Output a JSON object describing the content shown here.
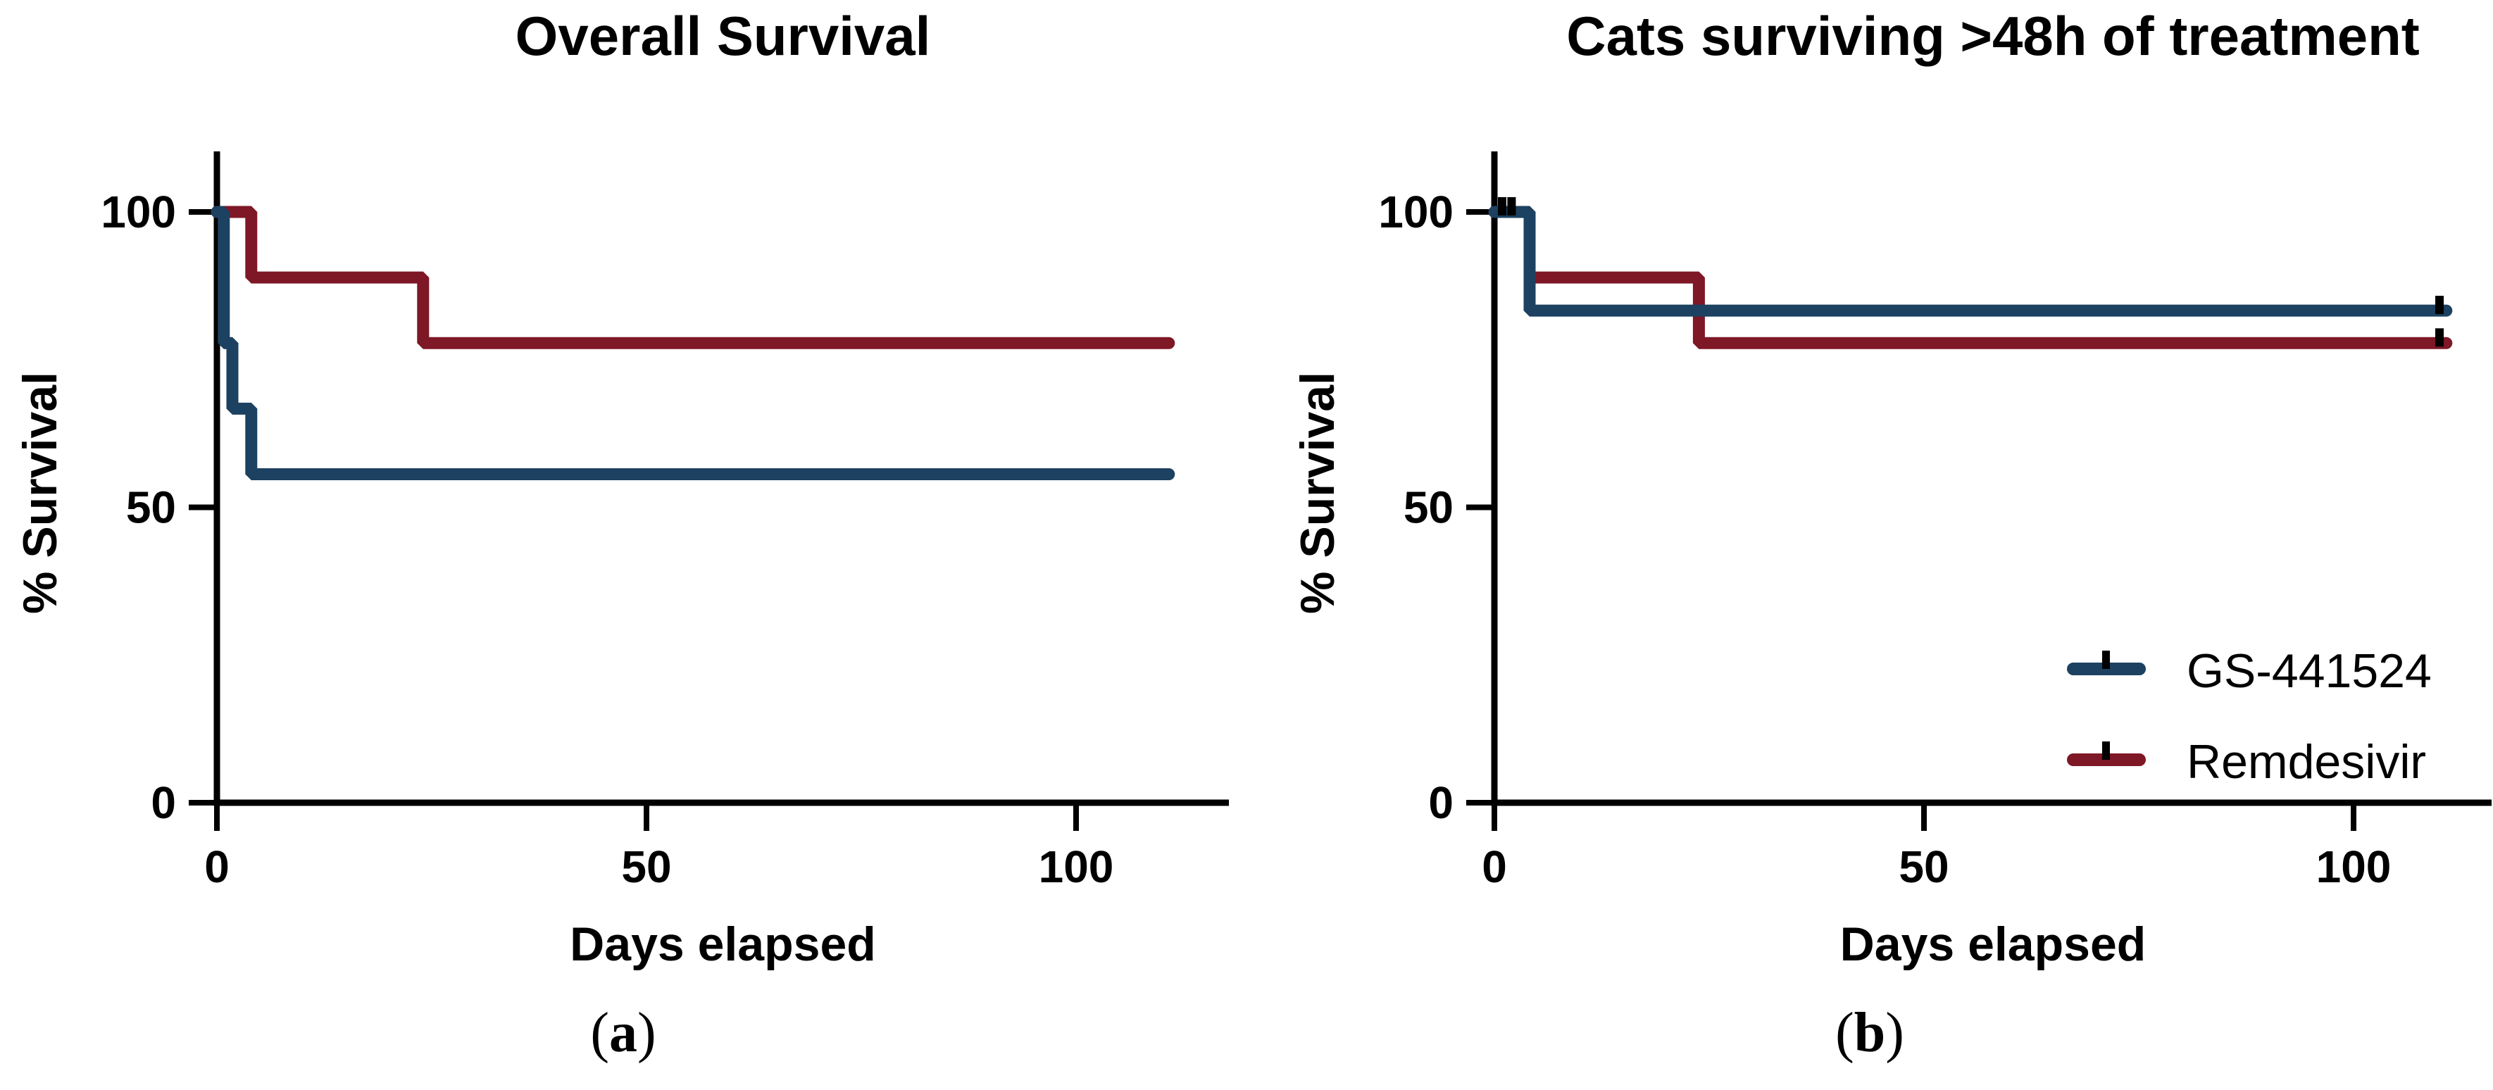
{
  "colors": {
    "gs_blue": "#1C4161",
    "rdv_red": "#7E1726",
    "axis_black": "#000000",
    "background": "#FFFFFF"
  },
  "chart_data": [
    {
      "type": "line",
      "subtype": "kaplan-meier-step",
      "title": "Overall Survival",
      "xlabel": "Days elapsed",
      "ylabel": "% Survival",
      "caption": {
        "open": "(",
        "letter": "a",
        "close": ")"
      },
      "xlim": [
        0,
        117
      ],
      "ylim": [
        0,
        110
      ],
      "xticks": [
        0,
        50,
        100
      ],
      "yticks": [
        0,
        50,
        100
      ],
      "grid": false,
      "legend_position": "none",
      "series": [
        {
          "name": "Remdesivir",
          "color": "#7E1726",
          "x": [
            0,
            4,
            4,
            24,
            24,
            110.8
          ],
          "y": [
            100,
            100,
            88.9,
            88.9,
            77.8,
            77.8
          ],
          "censor_marks": []
        },
        {
          "name": "GS-441524",
          "color": "#1C4161",
          "x": [
            0,
            0.8,
            0.8,
            1.8,
            1.8,
            4,
            4,
            110.8
          ],
          "y": [
            100,
            100,
            77.8,
            77.8,
            66.7,
            66.7,
            55.6,
            55.6
          ],
          "censor_marks": []
        }
      ]
    },
    {
      "type": "line",
      "subtype": "kaplan-meier-step",
      "title": "Cats surviving >48h of treatment",
      "xlabel": "Days elapsed",
      "ylabel": "% Survival",
      "caption": {
        "open": "(",
        "letter": "b",
        "close": ")"
      },
      "xlim": [
        0,
        117
      ],
      "ylim": [
        0,
        110
      ],
      "xticks": [
        0,
        50,
        100
      ],
      "yticks": [
        0,
        50,
        100
      ],
      "grid": false,
      "legend_position": "inside-right",
      "series": [
        {
          "name": "Remdesivir",
          "color": "#7E1726",
          "x": [
            0,
            4.1,
            4.1,
            23.8,
            23.8,
            110.8
          ],
          "y": [
            100,
            100,
            88.9,
            88.9,
            77.8,
            77.8
          ],
          "censor_marks": [
            [
              110,
              77.8
            ]
          ]
        },
        {
          "name": "GS-441524",
          "color": "#1C4161",
          "x": [
            0,
            4.1,
            4.1,
            110.8
          ],
          "y": [
            100,
            100,
            83.3,
            83.3
          ],
          "censor_marks": [
            [
              0.9,
              100
            ],
            [
              2,
              100
            ],
            [
              110,
              83.3
            ]
          ]
        }
      ],
      "legend": [
        {
          "label": "GS-441524",
          "color": "#1C4161"
        },
        {
          "label": "Remdesivir",
          "color": "#7E1726"
        }
      ]
    }
  ]
}
